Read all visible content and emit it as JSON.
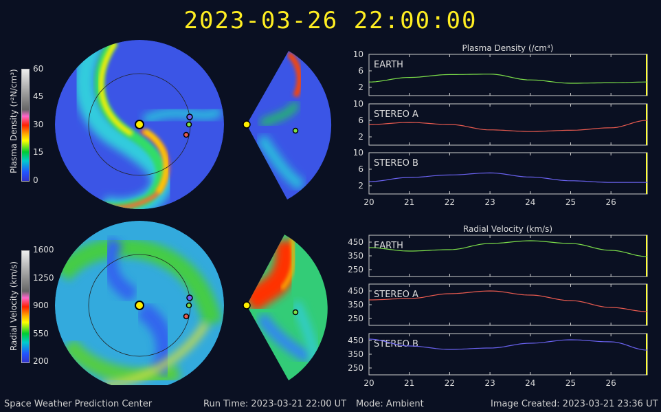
{
  "header": {
    "datetime": "2023-03-26  22:00:00"
  },
  "colorbars": {
    "density": {
      "label": "Plasma Density (r²N/cm³)",
      "ticks": [
        "60",
        "45",
        "30",
        "15",
        "0"
      ]
    },
    "velocity": {
      "label": "Radial Velocity (km/s)",
      "ticks": [
        "1600",
        "1250",
        "900",
        "550",
        "200"
      ]
    }
  },
  "colors": {
    "background": "#0a1022",
    "title": "#ffee22",
    "earth": "#7de04a",
    "stereo_a": "#e85a4f",
    "stereo_b": "#6a62f0",
    "current_time_marker": "#ffff33"
  },
  "chart_data": [
    {
      "type": "line",
      "title": "Plasma Density (/cm³)",
      "panels": [
        {
          "name": "EARTH",
          "ylim": [
            0,
            10
          ],
          "yticks": [
            "10",
            "6",
            "2"
          ],
          "x": [
            20,
            21,
            22,
            23,
            24,
            25,
            26,
            26.9
          ],
          "values": [
            3.3,
            4.4,
            5.1,
            5.2,
            3.8,
            3.0,
            3.1,
            3.3
          ]
        },
        {
          "name": "STEREO A",
          "ylim": [
            0,
            10
          ],
          "yticks": [
            "10",
            "6",
            "2"
          ],
          "x": [
            20,
            21,
            22,
            23,
            24,
            25,
            26,
            26.9
          ],
          "values": [
            5.0,
            5.5,
            5.0,
            3.7,
            3.3,
            3.6,
            4.2,
            6.0
          ]
        },
        {
          "name": "STEREO B",
          "ylim": [
            0,
            10
          ],
          "yticks": [
            "10",
            "6",
            "2"
          ],
          "x": [
            20,
            21,
            22,
            23,
            24,
            25,
            26,
            26.9
          ],
          "values": [
            3.0,
            4.0,
            4.6,
            5.1,
            4.1,
            3.2,
            2.8,
            2.8
          ]
        }
      ],
      "xticks": [
        "20",
        "21",
        "22",
        "23",
        "24",
        "25",
        "26"
      ],
      "xlim": [
        20,
        26.9
      ]
    },
    {
      "type": "line",
      "title": "Radial Velocity (km/s)",
      "panels": [
        {
          "name": "EARTH",
          "ylim": [
            200,
            500
          ],
          "yticks": [
            "450",
            "350",
            "250"
          ],
          "x": [
            20,
            21,
            22,
            23,
            24,
            25,
            26,
            26.9
          ],
          "values": [
            410,
            385,
            395,
            440,
            460,
            440,
            390,
            345
          ]
        },
        {
          "name": "STEREO A",
          "ylim": [
            200,
            500
          ],
          "yticks": [
            "450",
            "350",
            "250"
          ],
          "x": [
            20,
            21,
            22,
            23,
            24,
            25,
            26,
            26.9
          ],
          "values": [
            385,
            395,
            430,
            450,
            420,
            380,
            330,
            300
          ]
        },
        {
          "name": "STEREO B",
          "ylim": [
            200,
            500
          ],
          "yticks": [
            "450",
            "350",
            "250"
          ],
          "x": [
            20,
            21,
            22,
            23,
            24,
            25,
            26,
            26.9
          ],
          "values": [
            460,
            410,
            385,
            395,
            430,
            455,
            440,
            380
          ]
        }
      ],
      "xticks": [
        "20",
        "21",
        "22",
        "23",
        "24",
        "25",
        "26"
      ],
      "xlim": [
        20,
        26.9
      ]
    }
  ],
  "footer": {
    "org": "Space Weather Prediction Center",
    "run_time": "Run Time: 2023-03-21 22:00 UT",
    "mode": "Mode: Ambient",
    "created": "Image Created: 2023-03-21 23:36 UT"
  }
}
